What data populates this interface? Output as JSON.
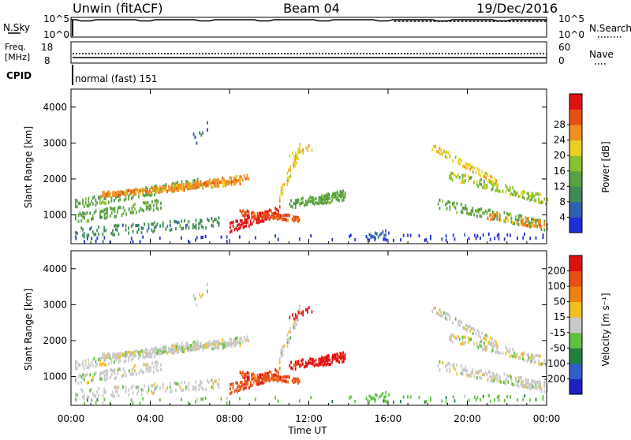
{
  "header": {
    "station": "Unwin (fitACF)",
    "beam": "Beam 04",
    "date": "19/Dec/2016"
  },
  "top_panels": {
    "nsky_label": "N.Sky",
    "nsky_ticks": [
      "10^5",
      "10^0"
    ],
    "nsearch_label": "N.Search",
    "freq_label_1": "Freq.",
    "freq_label_2": "[MHz]",
    "freq_ticks": [
      "18",
      "8"
    ],
    "nave_label": "Nave",
    "nave_ticks": [
      "60",
      "0"
    ],
    "cpid_label": "CPID",
    "cpid_text": "normal (fast) 151"
  },
  "colors": {
    "power_scale": [
      "#1f2fd8",
      "#2f5fb0",
      "#3f8a58",
      "#5aa040",
      "#88c030",
      "#e8d020",
      "#f09020",
      "#e85010",
      "#e01010"
    ],
    "velocity_scale": [
      "#2020c0",
      "#3060c8",
      "#208040",
      "#60c040",
      "#c8c8c8",
      "#f0c020",
      "#f08010",
      "#e85010",
      "#e01010"
    ]
  },
  "chart_data": [
    {
      "type": "heatmap",
      "name": "power",
      "ylabel": "Slant Range [km]",
      "yticks": [
        "1000",
        "2000",
        "3000",
        "4000"
      ],
      "ylim": [
        200,
        4500
      ],
      "colorbar_label": "Power [dB]",
      "colorbar_ticks": [
        "4",
        "8",
        "12",
        "16",
        "20",
        "24",
        "28"
      ],
      "clim": [
        0,
        32
      ]
    },
    {
      "type": "heatmap",
      "name": "velocity",
      "ylabel": "Slant Range [km]",
      "yticks": [
        "1000",
        "2000",
        "3000",
        "4000"
      ],
      "ylim": [
        200,
        4500
      ],
      "colorbar_label": "Velocity [m s⁻¹]",
      "colorbar_ticks": [
        "200",
        "100",
        "50",
        "15",
        "-15",
        "-50",
        "-100",
        "-200"
      ]
    }
  ],
  "xaxis": {
    "ticks": [
      "00:00",
      "04:00",
      "08:00",
      "12:00",
      "16:00",
      "20:00",
      "00:00"
    ],
    "label": "Time UT"
  }
}
